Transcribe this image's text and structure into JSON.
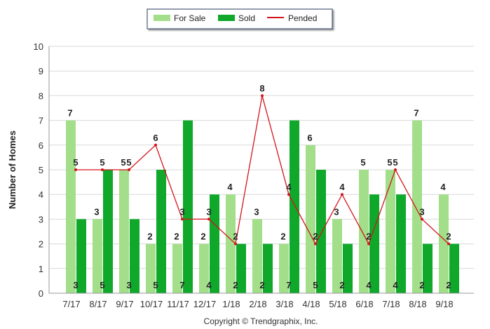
{
  "chart_data": {
    "type": "bar",
    "title": "",
    "xlabel": "",
    "ylabel": "Number of Homes",
    "ylim": [
      0,
      10
    ],
    "yticks": [
      0,
      1,
      2,
      3,
      4,
      5,
      6,
      7,
      8,
      9,
      10
    ],
    "grid": true,
    "legend_position": "top-center",
    "categories": [
      "7/17",
      "8/17",
      "9/17",
      "10/17",
      "11/17",
      "12/17",
      "1/18",
      "2/18",
      "3/18",
      "4/18",
      "5/18",
      "6/18",
      "7/18",
      "8/18",
      "9/18"
    ],
    "series": [
      {
        "name": "For Sale",
        "type": "bar",
        "color": "#a3df8a",
        "values": [
          7,
          3,
          5,
          2,
          2,
          2,
          4,
          3,
          2,
          6,
          3,
          5,
          5,
          7,
          4
        ]
      },
      {
        "name": "Sold",
        "type": "bar",
        "color": "#0fa82a",
        "values": [
          3,
          5,
          3,
          5,
          7,
          4,
          2,
          2,
          7,
          5,
          2,
          4,
          4,
          2,
          2
        ]
      },
      {
        "name": "Pended",
        "type": "line",
        "color": "#d4141c",
        "values": [
          5,
          5,
          5,
          6,
          3,
          3,
          2,
          8,
          4,
          2,
          4,
          2,
          5,
          3,
          2
        ]
      }
    ],
    "footer": "Copyright © Trendgraphix, Inc."
  }
}
